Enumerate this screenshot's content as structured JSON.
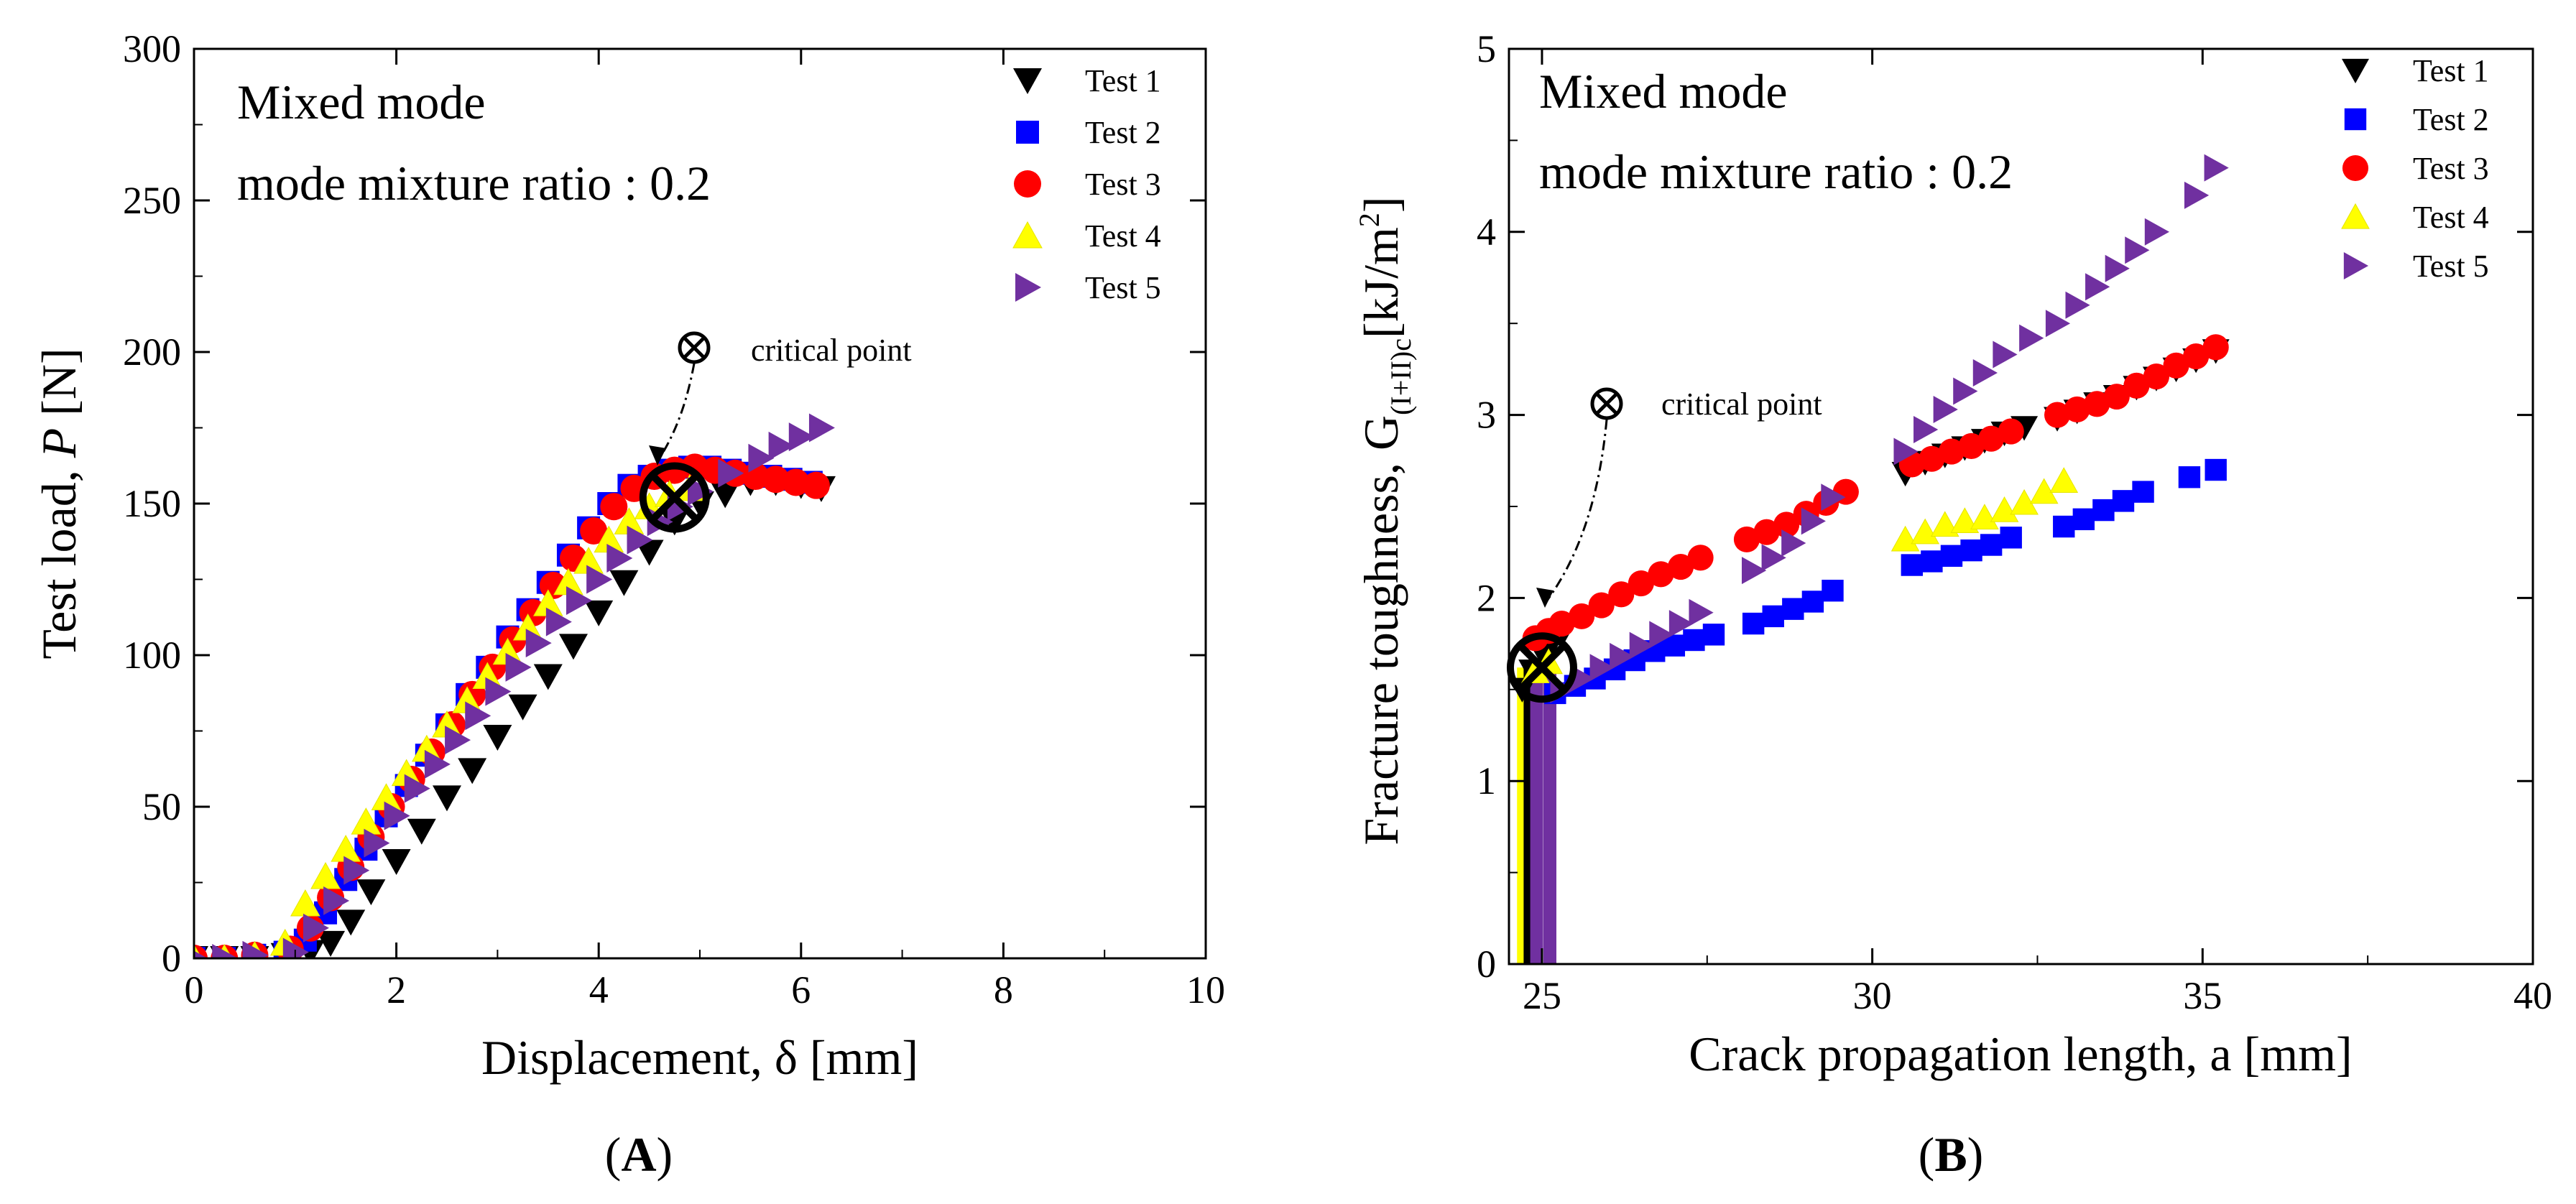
{
  "chart_data": [
    {
      "type": "scatter",
      "panel": "A",
      "panel_label": "(A)",
      "xlabel": "Displacement, δ [mm]",
      "ylabel_text": "Test load, ",
      "ylabel_var": "P",
      "ylabel_unit": " [N]",
      "xlim": [
        0,
        10
      ],
      "ylim": [
        0,
        300
      ],
      "xticks": [
        "0",
        "2",
        "4",
        "6",
        "8",
        "10"
      ],
      "yticks": [
        "0",
        "50",
        "100",
        "150",
        "200",
        "250",
        "300"
      ],
      "annotation_lines": [
        "Mixed mode",
        "mode mixture ratio : 0.2"
      ],
      "critical_label": "critical point",
      "critical_point": [
        4.75,
        152
      ],
      "legend_position": "top-right",
      "series": [
        {
          "name": "Test 1",
          "marker": "triangle-down",
          "color": "#000000",
          "x": [
            0.0,
            0.3,
            0.6,
            0.9,
            1.15,
            1.35,
            1.55,
            1.75,
            2.0,
            2.25,
            2.5,
            2.75,
            3.0,
            3.25,
            3.5,
            3.75,
            4.0,
            4.25,
            4.5,
            4.75,
            5.0,
            5.25,
            5.5,
            5.75,
            6.0,
            6.2
          ],
          "y": [
            0,
            0,
            0,
            1,
            2,
            5,
            12,
            22,
            32,
            42,
            53,
            62,
            73,
            83,
            93,
            103,
            114,
            124,
            134,
            144,
            150,
            153,
            157,
            157,
            156,
            155
          ]
        },
        {
          "name": "Test 2",
          "marker": "square",
          "color": "#0000ff",
          "x": [
            0.0,
            0.3,
            0.6,
            0.9,
            1.1,
            1.3,
            1.5,
            1.7,
            1.9,
            2.1,
            2.3,
            2.5,
            2.7,
            2.9,
            3.1,
            3.3,
            3.5,
            3.7,
            3.9,
            4.1,
            4.3,
            4.5,
            4.7,
            4.9,
            5.1,
            5.3,
            5.5,
            5.7,
            5.9,
            6.1
          ],
          "y": [
            0,
            0,
            1,
            2,
            6,
            15,
            26,
            36,
            47,
            57,
            67,
            77,
            87,
            96,
            106,
            115,
            124,
            133,
            142,
            150,
            156,
            159,
            161,
            162,
            162,
            161,
            160,
            159,
            158,
            157
          ]
        },
        {
          "name": "Test 3",
          "marker": "circle",
          "color": "#ff0000",
          "x": [
            0.0,
            0.3,
            0.6,
            0.95,
            1.15,
            1.35,
            1.55,
            1.75,
            1.95,
            2.15,
            2.35,
            2.55,
            2.75,
            2.95,
            3.15,
            3.35,
            3.55,
            3.75,
            3.95,
            4.15,
            4.35,
            4.55,
            4.75,
            4.95,
            5.15,
            5.35,
            5.55,
            5.75,
            5.95,
            6.15
          ],
          "y": [
            0,
            0,
            1,
            3,
            10,
            20,
            30,
            40,
            50,
            59,
            68,
            77,
            87,
            96,
            105,
            114,
            123,
            132,
            141,
            149,
            155,
            159,
            161,
            162,
            161,
            160,
            159,
            158,
            157,
            156
          ]
        },
        {
          "name": "Test 4",
          "marker": "triangle-up",
          "color": "#ffff00",
          "x": [
            0.0,
            0.3,
            0.6,
            0.9,
            1.1,
            1.3,
            1.5,
            1.7,
            1.9,
            2.1,
            2.3,
            2.5,
            2.7,
            2.9,
            3.1,
            3.3,
            3.5,
            3.7,
            3.9,
            4.1,
            4.3,
            4.5,
            4.7,
            4.9
          ],
          "y": [
            0,
            0,
            1,
            5,
            18,
            27,
            36,
            45,
            53,
            61,
            69,
            77,
            85,
            93,
            101,
            109,
            117,
            124,
            131,
            138,
            144,
            149,
            153,
            155
          ]
        },
        {
          "name": "Test 5",
          "marker": "triangle-right",
          "color": "#7030a0",
          "x": [
            0.0,
            0.3,
            0.6,
            1.0,
            1.2,
            1.4,
            1.6,
            1.8,
            2.0,
            2.2,
            2.4,
            2.6,
            2.8,
            3.0,
            3.2,
            3.4,
            3.6,
            3.8,
            4.0,
            4.2,
            4.4,
            4.6,
            4.8,
            5.0,
            5.3,
            5.6,
            5.8,
            6.0,
            6.2
          ],
          "y": [
            0,
            0,
            1,
            2,
            10,
            19,
            29,
            38,
            47,
            56,
            64,
            72,
            80,
            88,
            96,
            104,
            111,
            118,
            125,
            132,
            138,
            144,
            149,
            154,
            160,
            165,
            169,
            172,
            175
          ]
        }
      ]
    },
    {
      "type": "scatter",
      "panel": "B",
      "panel_label": "(B)",
      "xlabel": "Crack propagation length, a [mm]",
      "ylabel_text": "Fracture toughness, G",
      "ylabel_sub": "(I+II)c",
      "ylabel_unit": "[kJ/m",
      "ylabel_sup": "2",
      "ylabel_close": "]",
      "xlim": [
        24.5,
        40
      ],
      "ylim": [
        0,
        5
      ],
      "xticks": [
        "25",
        "30",
        "35",
        "40"
      ],
      "yticks": [
        "0",
        "1",
        "2",
        "3",
        "4",
        "5"
      ],
      "annotation_lines": [
        "Mixed mode",
        "mode mixture ratio : 0.2"
      ],
      "critical_label": "critical point",
      "critical_point": [
        25.0,
        1.62
      ],
      "legend_position": "top-right",
      "series": [
        {
          "name": "Test 1",
          "marker": "triangle-down",
          "color": "#000000",
          "x": [
            24.7,
            24.85,
            25.0,
            25.15,
            25.3,
            30.5,
            30.8,
            31.1,
            31.4,
            31.7,
            32.0,
            32.3,
            32.8,
            33.1,
            33.4,
            33.7,
            34.0,
            34.3,
            34.6,
            34.9,
            35.2
          ],
          "y": [
            1.5,
            1.6,
            1.7,
            1.75,
            1.8,
            2.68,
            2.74,
            2.78,
            2.82,
            2.86,
            2.9,
            2.93,
            2.98,
            3.02,
            3.06,
            3.1,
            3.15,
            3.2,
            3.25,
            3.3,
            3.35
          ]
        },
        {
          "name": "Test 2",
          "marker": "square",
          "color": "#0000ff",
          "x": [
            25.2,
            25.5,
            25.8,
            26.1,
            26.4,
            26.7,
            27.0,
            27.3,
            27.6,
            28.2,
            28.5,
            28.8,
            29.1,
            29.4,
            30.6,
            30.9,
            31.2,
            31.5,
            31.8,
            32.1,
            32.9,
            33.2,
            33.5,
            33.8,
            34.1,
            34.8,
            35.2
          ],
          "y": [
            1.48,
            1.52,
            1.56,
            1.61,
            1.66,
            1.71,
            1.74,
            1.77,
            1.8,
            1.86,
            1.9,
            1.94,
            1.98,
            2.04,
            2.18,
            2.2,
            2.23,
            2.26,
            2.29,
            2.33,
            2.39,
            2.43,
            2.48,
            2.53,
            2.58,
            2.66,
            2.7
          ]
        },
        {
          "name": "Test 3",
          "marker": "circle",
          "color": "#ff0000",
          "x": [
            24.9,
            25.1,
            25.3,
            25.6,
            25.9,
            26.2,
            26.5,
            26.8,
            27.1,
            27.4,
            28.1,
            28.4,
            28.7,
            29.0,
            29.3,
            29.6,
            30.6,
            30.9,
            31.2,
            31.5,
            31.8,
            32.1,
            32.8,
            33.1,
            33.4,
            33.7,
            34.0,
            34.3,
            34.6,
            34.9,
            35.2
          ],
          "y": [
            1.78,
            1.82,
            1.86,
            1.9,
            1.96,
            2.02,
            2.08,
            2.13,
            2.17,
            2.22,
            2.32,
            2.36,
            2.4,
            2.46,
            2.52,
            2.58,
            2.73,
            2.76,
            2.8,
            2.83,
            2.87,
            2.91,
            3.0,
            3.03,
            3.06,
            3.1,
            3.16,
            3.21,
            3.27,
            3.32,
            3.37
          ]
        },
        {
          "name": "Test 4",
          "marker": "triangle-up",
          "color": "#ffff00",
          "x": [
            24.9,
            25.1,
            30.5,
            30.8,
            31.1,
            31.4,
            31.7,
            32.0,
            32.3,
            32.6,
            32.9
          ],
          "y": [
            1.6,
            1.65,
            2.32,
            2.36,
            2.4,
            2.42,
            2.44,
            2.48,
            2.52,
            2.58,
            2.64
          ]
        },
        {
          "name": "Test 5",
          "marker": "triangle-right",
          "color": "#7030a0",
          "x": [
            25.3,
            25.6,
            25.9,
            26.2,
            26.5,
            26.8,
            27.1,
            27.4,
            28.2,
            28.5,
            28.8,
            29.1,
            29.4,
            30.5,
            30.8,
            31.1,
            31.4,
            31.7,
            32.0,
            32.4,
            32.8,
            33.1,
            33.4,
            33.7,
            34.0,
            34.3,
            34.9,
            35.2
          ],
          "y": [
            1.5,
            1.56,
            1.62,
            1.68,
            1.74,
            1.8,
            1.86,
            1.92,
            2.15,
            2.22,
            2.3,
            2.42,
            2.55,
            2.8,
            2.92,
            3.03,
            3.13,
            3.23,
            3.33,
            3.42,
            3.5,
            3.6,
            3.7,
            3.8,
            3.9,
            4.0,
            4.2,
            4.35
          ]
        }
      ]
    }
  ]
}
